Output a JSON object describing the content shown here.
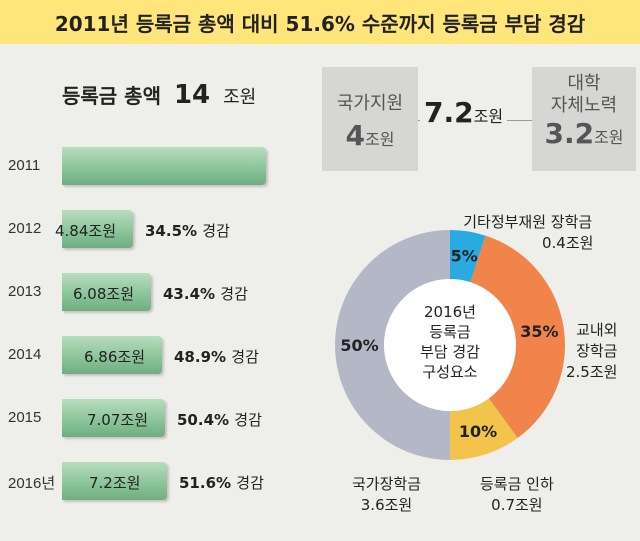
{
  "title": "2011년 등록금 총액 대비 51.6% 수준까지 등록금 부담 경감",
  "total": {
    "label": "등록금 총액",
    "value": "14",
    "unit": "조원"
  },
  "boxes": {
    "gov": {
      "label": "국가지원",
      "value": "4",
      "unit": "조원"
    },
    "mid": {
      "value": "7.2",
      "unit": "조원"
    },
    "univ": {
      "label1": "대학",
      "label2": "자체노력",
      "value": "3.2",
      "unit": "조원"
    }
  },
  "chart_data": [
    {
      "type": "bar",
      "categories": [
        "2011",
        "2012",
        "2013",
        "2014",
        "2015",
        "2016년"
      ],
      "values": [
        14,
        4.84,
        6.08,
        6.86,
        7.07,
        7.2
      ],
      "value_labels": [
        "",
        "4.84조원",
        "6.08조원",
        "6.86조원",
        "7.07조원",
        "7.2조원"
      ],
      "percent_labels": [
        "",
        "34.5%",
        "43.4%",
        "48.9%",
        "50.4%",
        "51.6%"
      ],
      "percent_suffix": "경감",
      "orientation": "horizontal",
      "xlim": [
        0,
        14
      ]
    },
    {
      "type": "pie",
      "title": "2016년 등록금 부담 경감 구성요소",
      "center_lines": [
        "2016년",
        "등록금",
        "부담 경감",
        "구성요소"
      ],
      "slices": [
        {
          "label": "기타정부재원 장학금",
          "value": 5,
          "amount": "0.4조원",
          "text": "5%",
          "color": "#29abe2"
        },
        {
          "label": "교내외 장학금",
          "value": 35,
          "amount": "2.5조원",
          "text": "35%",
          "color": "#f0844a"
        },
        {
          "label": "등록금 인하",
          "value": 10,
          "amount": "0.7조원",
          "text": "10%",
          "color": "#f2c44b"
        },
        {
          "label": "국가장학금",
          "value": 50,
          "amount": "3.6조원",
          "text": "50%",
          "color": "#b4b7c6"
        }
      ],
      "legend": {
        "s0_l1": "기타정부재원 장학금",
        "s1_l1": "교내외",
        "s1_l2": "장학금",
        "s2_l1": "등록금 인하",
        "s3_l1": "국가장학금"
      }
    }
  ]
}
